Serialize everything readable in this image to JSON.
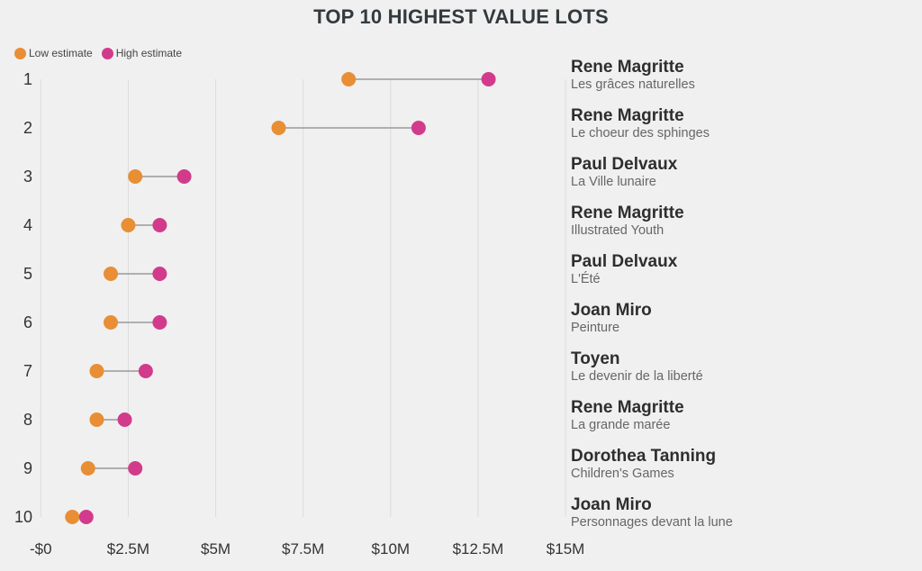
{
  "chart_data": {
    "type": "dumbbell",
    "title": "TOP 10 HIGHEST VALUE LOTS",
    "xlabel": "",
    "ylabel": "",
    "xlim": [
      0,
      15
    ],
    "x_unit": "USD millions",
    "x_ticks": [
      0,
      2.5,
      5,
      7.5,
      10,
      12.5,
      15
    ],
    "x_tick_labels": [
      "-$0",
      "$2.5M",
      "$5M",
      "$7.5M",
      "$10M",
      "$12.5M",
      "$15M"
    ],
    "grid": "vertical",
    "legend_position": "top-left",
    "series": [
      {
        "name": "Low estimate",
        "color": "#e88e35",
        "values": [
          8.8,
          6.8,
          2.7,
          2.5,
          2.0,
          2.0,
          1.6,
          1.6,
          1.35,
          0.9
        ]
      },
      {
        "name": "High estimate",
        "color": "#d23b8b",
        "values": [
          12.8,
          10.8,
          4.1,
          3.4,
          3.4,
          3.4,
          3.0,
          2.4,
          2.7,
          1.3
        ]
      }
    ],
    "categories": [
      "1",
      "2",
      "3",
      "4",
      "5",
      "6",
      "7",
      "8",
      "9",
      "10"
    ],
    "lots": [
      {
        "rank": "1",
        "artist": "Rene Magritte",
        "work": "Les grâces naturelles"
      },
      {
        "rank": "2",
        "artist": "Rene Magritte",
        "work": "Le choeur des sphinges"
      },
      {
        "rank": "3",
        "artist": "Paul Delvaux",
        "work": "La Ville lunaire"
      },
      {
        "rank": "4",
        "artist": "Rene Magritte",
        "work": "Illustrated Youth"
      },
      {
        "rank": "5",
        "artist": "Paul Delvaux",
        "work": "L'Été"
      },
      {
        "rank": "6",
        "artist": "Joan Miro",
        "work": "Peinture"
      },
      {
        "rank": "7",
        "artist": "Toyen",
        "work": "Le devenir de la liberté"
      },
      {
        "rank": "8",
        "artist": "Rene Magritte",
        "work": "La grande marée"
      },
      {
        "rank": "9",
        "artist": "Dorothea Tanning",
        "work": "Children's Games"
      },
      {
        "rank": "10",
        "artist": "Joan Miro",
        "work": "Personnages devant la lune"
      }
    ]
  },
  "colors": {
    "background": "#f0f0f0",
    "connector": "#999999",
    "grid": "#dcdcdc"
  }
}
